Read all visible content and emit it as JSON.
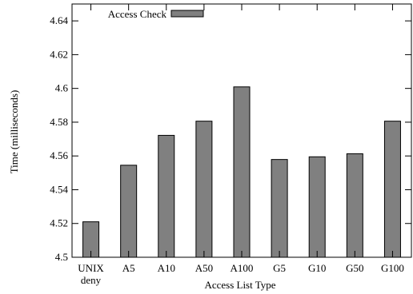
{
  "chart_data": {
    "type": "bar",
    "title": "",
    "xlabel": "Access List Type",
    "ylabel": "Time (milliseconds)",
    "categories": [
      [
        "UNIX",
        "deny"
      ],
      [
        "A5"
      ],
      [
        "A10"
      ],
      [
        "A50"
      ],
      [
        "A100"
      ],
      [
        "G5"
      ],
      [
        "G10"
      ],
      [
        "G50"
      ],
      [
        "G100"
      ]
    ],
    "series": [
      {
        "name": "Access Check",
        "color": "#808080",
        "values": [
          4.521,
          4.5545,
          4.5722,
          4.5806,
          4.6009,
          4.5579,
          4.5595,
          4.5613,
          4.5806
        ]
      }
    ],
    "ylim": [
      4.5,
      4.65
    ],
    "yticks": [
      "4.5",
      "4.52",
      "4.54",
      "4.56",
      "4.58",
      "4.6",
      "4.62",
      "4.64"
    ],
    "ytick_values": [
      4.5,
      4.52,
      4.54,
      4.56,
      4.58,
      4.6,
      4.62,
      4.64
    ],
    "grid": false,
    "legend_position": "top-left"
  }
}
